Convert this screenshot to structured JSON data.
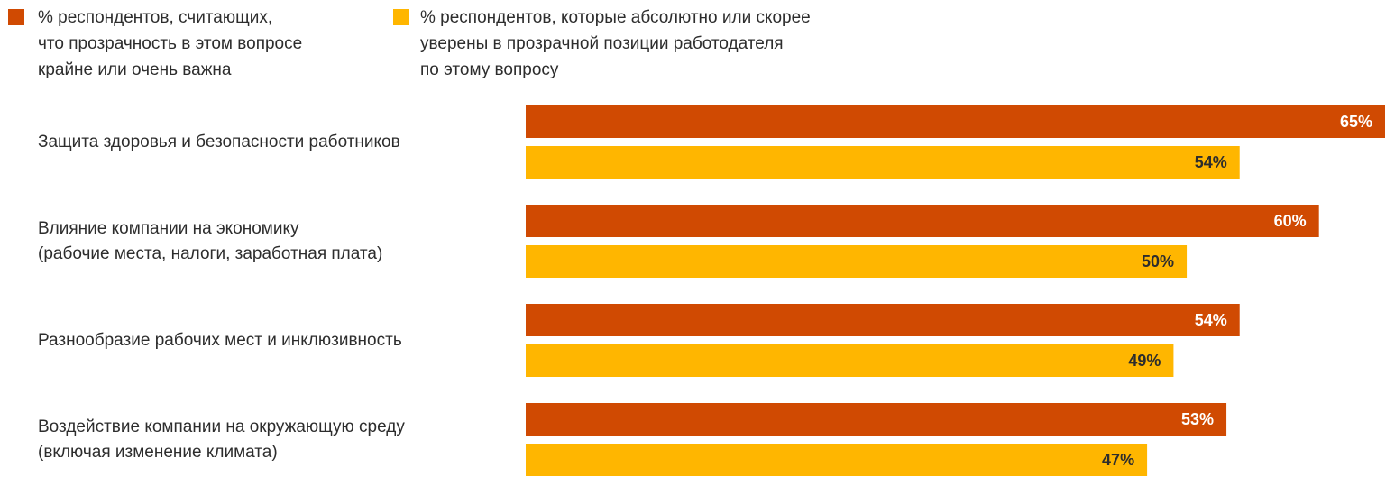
{
  "chart_data": {
    "type": "bar",
    "orientation": "horizontal",
    "categories": [
      "Защита здоровья и безопасности работников",
      "Влияние компании на экономику\n(рабочие места, налоги, заработная плата)",
      "Разнообразие рабочих мест и инклюзивность",
      "Воздействие компании на окружающую среду\n(включая изменение климата)"
    ],
    "series": [
      {
        "name": "% респондентов, считающих,\nчто прозрачность в этом вопросе\nкрайне или очень важна",
        "color": "#d04a02",
        "values": [
          65,
          60,
          54,
          53
        ],
        "value_labels": [
          "65%",
          "60%",
          "54%",
          "53%"
        ]
      },
      {
        "name": "% респондентов, которые абсолютно или скорее\nуверены в прозрачной позиции работодателя\nпо этому вопросу",
        "color": "#ffb600",
        "values": [
          54,
          50,
          49,
          47
        ],
        "value_labels": [
          "54%",
          "50%",
          "49%",
          "47%"
        ]
      }
    ]
  }
}
